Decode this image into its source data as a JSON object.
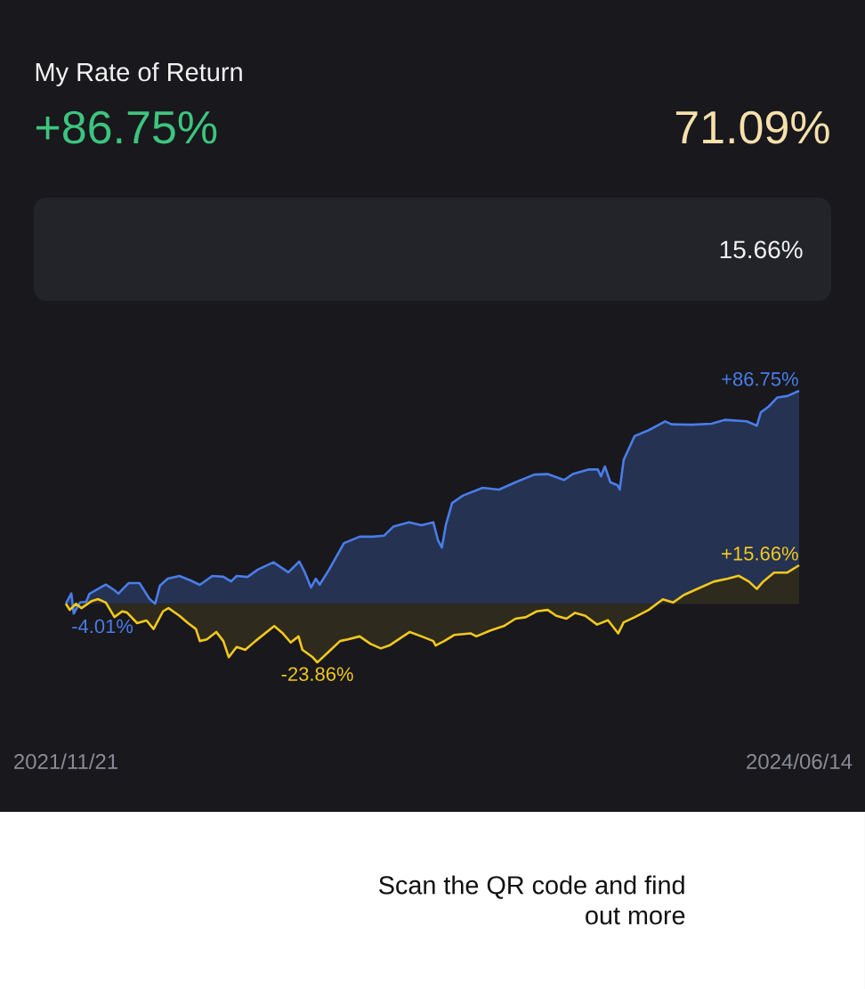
{
  "chart_data": {
    "type": "area",
    "tick_labels": "x",
    "xlim": [
      "2021-11-21",
      "2024-06-14"
    ],
    "xticks": [
      {
        "value": "2021-11-21",
        "label": "2021/11/21"
      },
      {
        "value": "2024-06-14",
        "label": "2024/06/14"
      }
    ],
    "series": [
      {
        "color": "#4a7de8",
        "x": [
          "2021-11-21",
          "2021-11-28",
          "2021-12-01",
          "2021-12-09",
          "2021-12-17",
          "2021-12-21",
          "2022-01-11",
          "2022-01-22",
          "2022-01-27",
          "2022-02-09",
          "2022-02-23",
          "2022-03-08",
          "2022-03-15",
          "2022-03-21",
          "2022-03-31",
          "2022-04-15",
          "2022-04-29",
          "2022-05-11",
          "2022-05-27",
          "2022-06-10",
          "2022-06-20",
          "2022-06-27",
          "2022-07-11",
          "2022-07-24",
          "2022-08-13",
          "2022-09-01",
          "2022-09-15",
          "2022-09-22",
          "2022-09-30",
          "2022-10-06",
          "2022-10-11",
          "2022-10-23",
          "2022-11-11",
          "2022-12-01",
          "2022-12-18",
          "2023-01-01",
          "2023-01-13",
          "2023-02-02",
          "2023-02-18",
          "2023-03-05",
          "2023-03-11",
          "2023-03-16",
          "2023-03-21",
          "2023-03-29",
          "2023-04-12",
          "2023-05-07",
          "2023-05-28",
          "2023-06-18",
          "2023-07-12",
          "2023-07-29",
          "2023-08-19",
          "2023-08-30",
          "2023-09-20",
          "2023-10-01",
          "2023-10-05",
          "2023-10-10",
          "2023-10-17",
          "2023-10-26",
          "2023-10-29",
          "2023-11-03",
          "2023-11-17",
          "2023-12-05",
          "2023-12-26",
          "2024-01-03",
          "2024-01-29",
          "2024-02-23",
          "2024-03-11",
          "2024-04-08",
          "2024-04-21",
          "2024-04-26",
          "2024-05-06",
          "2024-05-17",
          "2024-05-30",
          "2024-06-14"
        ],
        "values": [
          0,
          4.2,
          -4.01,
          0.5,
          0.8,
          4.0,
          7.8,
          5.5,
          4.1,
          8.4,
          8.4,
          1.9,
          0.0,
          7.3,
          10.2,
          11.3,
          9.5,
          7.7,
          11.3,
          11.0,
          9.1,
          11.3,
          10.9,
          13.9,
          16.9,
          12.8,
          17.2,
          12.8,
          6.6,
          10.2,
          7.8,
          13.9,
          24.7,
          27.3,
          27.3,
          27.7,
          31.4,
          33.2,
          32.0,
          33.2,
          25.9,
          22.9,
          32.0,
          41.0,
          44.1,
          47.2,
          46.5,
          49.5,
          52.6,
          52.8,
          50.4,
          52.8,
          54.7,
          54.7,
          51.9,
          55.9,
          49.5,
          48.3,
          46.5,
          58.6,
          68.3,
          70.7,
          74.3,
          73.1,
          72.9,
          73.3,
          74.9,
          74.3,
          72.5,
          77.9,
          80.3,
          84.0,
          84.6,
          86.75
        ],
        "value_labels": [
          null,
          null,
          "-4.01%",
          null,
          null,
          null,
          null,
          null,
          null,
          null,
          null,
          null,
          null,
          null,
          null,
          null,
          null,
          null,
          null,
          null,
          null,
          null,
          null,
          null,
          null,
          null,
          null,
          null,
          null,
          null,
          null,
          null,
          null,
          null,
          null,
          null,
          null,
          null,
          null,
          null,
          null,
          null,
          null,
          null,
          null,
          null,
          null,
          null,
          null,
          null,
          null,
          null,
          null,
          null,
          null,
          null,
          null,
          null,
          null,
          null,
          null,
          null,
          null,
          null,
          null,
          null,
          null,
          null,
          null,
          null,
          null,
          null,
          null,
          "+86.75%"
        ]
      },
      {
        "color": "#f2c81e",
        "x": [
          "2021-11-21",
          "2021-11-26",
          "2021-12-04",
          "2021-12-11",
          "2021-12-24",
          "2022-01-01",
          "2022-01-11",
          "2022-01-22",
          "2022-02-01",
          "2022-02-07",
          "2022-02-20",
          "2022-03-04",
          "2022-03-13",
          "2022-03-25",
          "2022-04-01",
          "2022-04-15",
          "2022-04-26",
          "2022-05-06",
          "2022-05-11",
          "2022-05-20",
          "2022-06-01",
          "2022-06-10",
          "2022-06-17",
          "2022-06-27",
          "2022-07-08",
          "2022-07-21",
          "2022-08-14",
          "2022-08-25",
          "2022-09-04",
          "2022-09-14",
          "2022-09-19",
          "2022-10-02",
          "2022-10-08",
          "2022-10-11",
          "2022-10-23",
          "2022-11-06",
          "2022-11-16",
          "2022-12-01",
          "2022-12-15",
          "2022-12-28",
          "2023-01-08",
          "2023-01-22",
          "2023-02-03",
          "2023-02-18",
          "2023-03-05",
          "2023-03-08",
          "2023-03-19",
          "2023-04-01",
          "2023-04-22",
          "2023-04-29",
          "2023-05-17",
          "2023-06-03",
          "2023-06-18",
          "2023-07-01",
          "2023-07-15",
          "2023-07-29",
          "2023-08-09",
          "2023-08-22",
          "2023-09-02",
          "2023-09-15",
          "2023-09-30",
          "2023-10-14",
          "2023-10-27",
          "2023-11-03",
          "2023-11-17",
          "2023-12-05",
          "2023-12-23",
          "2024-01-05",
          "2024-01-19",
          "2024-02-09",
          "2024-02-26",
          "2024-03-15",
          "2024-03-29",
          "2024-04-11",
          "2024-04-21",
          "2024-04-29",
          "2024-05-13",
          "2024-05-30",
          "2024-06-14"
        ],
        "values": [
          0,
          -2.5,
          0.0,
          -1.8,
          1.1,
          1.9,
          0.5,
          -5.4,
          -3.1,
          -3.6,
          -7.9,
          -6.8,
          -10.3,
          -3.1,
          -1.8,
          -4.9,
          -7.9,
          -10.3,
          -15.2,
          -14.5,
          -11.5,
          -15.2,
          -21.8,
          -17.6,
          -18.8,
          -15.2,
          -9.1,
          -12.1,
          -15.8,
          -13.3,
          -18.8,
          -21.8,
          -23.86,
          -23.0,
          -19.4,
          -15.2,
          -14.5,
          -13.3,
          -16.4,
          -18.2,
          -17.0,
          -14.0,
          -11.5,
          -13.3,
          -15.2,
          -17.0,
          -15.2,
          -12.7,
          -12.1,
          -13.3,
          -10.9,
          -9.1,
          -6.1,
          -5.5,
          -3.1,
          -2.5,
          -4.9,
          -6.1,
          -3.7,
          -4.9,
          -8.5,
          -6.7,
          -12.1,
          -7.6,
          -5.5,
          -2.5,
          1.8,
          0.5,
          3.6,
          6.6,
          9.0,
          10.2,
          11.4,
          9.0,
          6.0,
          9.0,
          12.7,
          12.7,
          15.66
        ],
        "value_labels": [
          null,
          null,
          null,
          null,
          null,
          null,
          null,
          null,
          null,
          null,
          null,
          null,
          null,
          null,
          null,
          null,
          null,
          null,
          null,
          null,
          null,
          null,
          null,
          null,
          null,
          null,
          null,
          null,
          null,
          null,
          null,
          null,
          "-23.86%",
          null,
          null,
          null,
          null,
          null,
          null,
          null,
          null,
          null,
          null,
          null,
          null,
          null,
          null,
          null,
          null,
          null,
          null,
          null,
          null,
          null,
          null,
          null,
          null,
          null,
          null,
          null,
          null,
          null,
          null,
          null,
          null,
          null,
          null,
          null,
          null,
          null,
          null,
          null,
          null,
          null,
          null,
          null,
          null,
          null,
          "+15.66%"
        ]
      }
    ],
    "annotations": [
      "My Rate of Return",
      "+86.75%",
      "71.09%",
      "15.66%",
      "Scan the QR code and find out more"
    ]
  }
}
